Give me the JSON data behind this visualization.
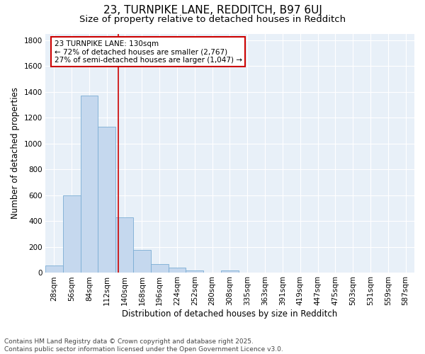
{
  "title1": "23, TURNPIKE LANE, REDDITCH, B97 6UJ",
  "title2": "Size of property relative to detached houses in Redditch",
  "xlabel": "Distribution of detached houses by size in Redditch",
  "ylabel": "Number of detached properties",
  "bar_labels": [
    "28sqm",
    "56sqm",
    "84sqm",
    "112sqm",
    "140sqm",
    "168sqm",
    "196sqm",
    "224sqm",
    "252sqm",
    "280sqm",
    "308sqm",
    "335sqm",
    "363sqm",
    "391sqm",
    "419sqm",
    "447sqm",
    "475sqm",
    "503sqm",
    "531sqm",
    "559sqm",
    "587sqm"
  ],
  "bar_values": [
    55,
    600,
    1370,
    1130,
    430,
    175,
    65,
    40,
    20,
    0,
    20,
    0,
    0,
    0,
    0,
    0,
    0,
    0,
    0,
    0,
    0
  ],
  "bar_color": "#c5d8ee",
  "bar_edge_color": "#7aadd4",
  "vline_x": 3.64,
  "vline_color": "#cc0000",
  "annotation_text": "23 TURNPIKE LANE: 130sqm\n← 72% of detached houses are smaller (2,767)\n27% of semi-detached houses are larger (1,047) →",
  "annotation_box_edgecolor": "#cc0000",
  "ylim": [
    0,
    1850
  ],
  "yticks": [
    0,
    200,
    400,
    600,
    800,
    1000,
    1200,
    1400,
    1600,
    1800
  ],
  "figure_bg": "#ffffff",
  "plot_bg": "#e8f0f8",
  "grid_color": "#ffffff",
  "footer_line1": "Contains HM Land Registry data © Crown copyright and database right 2025.",
  "footer_line2": "Contains public sector information licensed under the Open Government Licence v3.0.",
  "title1_fontsize": 11,
  "title2_fontsize": 9.5,
  "tick_fontsize": 7.5,
  "ylabel_fontsize": 8.5,
  "xlabel_fontsize": 8.5,
  "footer_fontsize": 6.5
}
